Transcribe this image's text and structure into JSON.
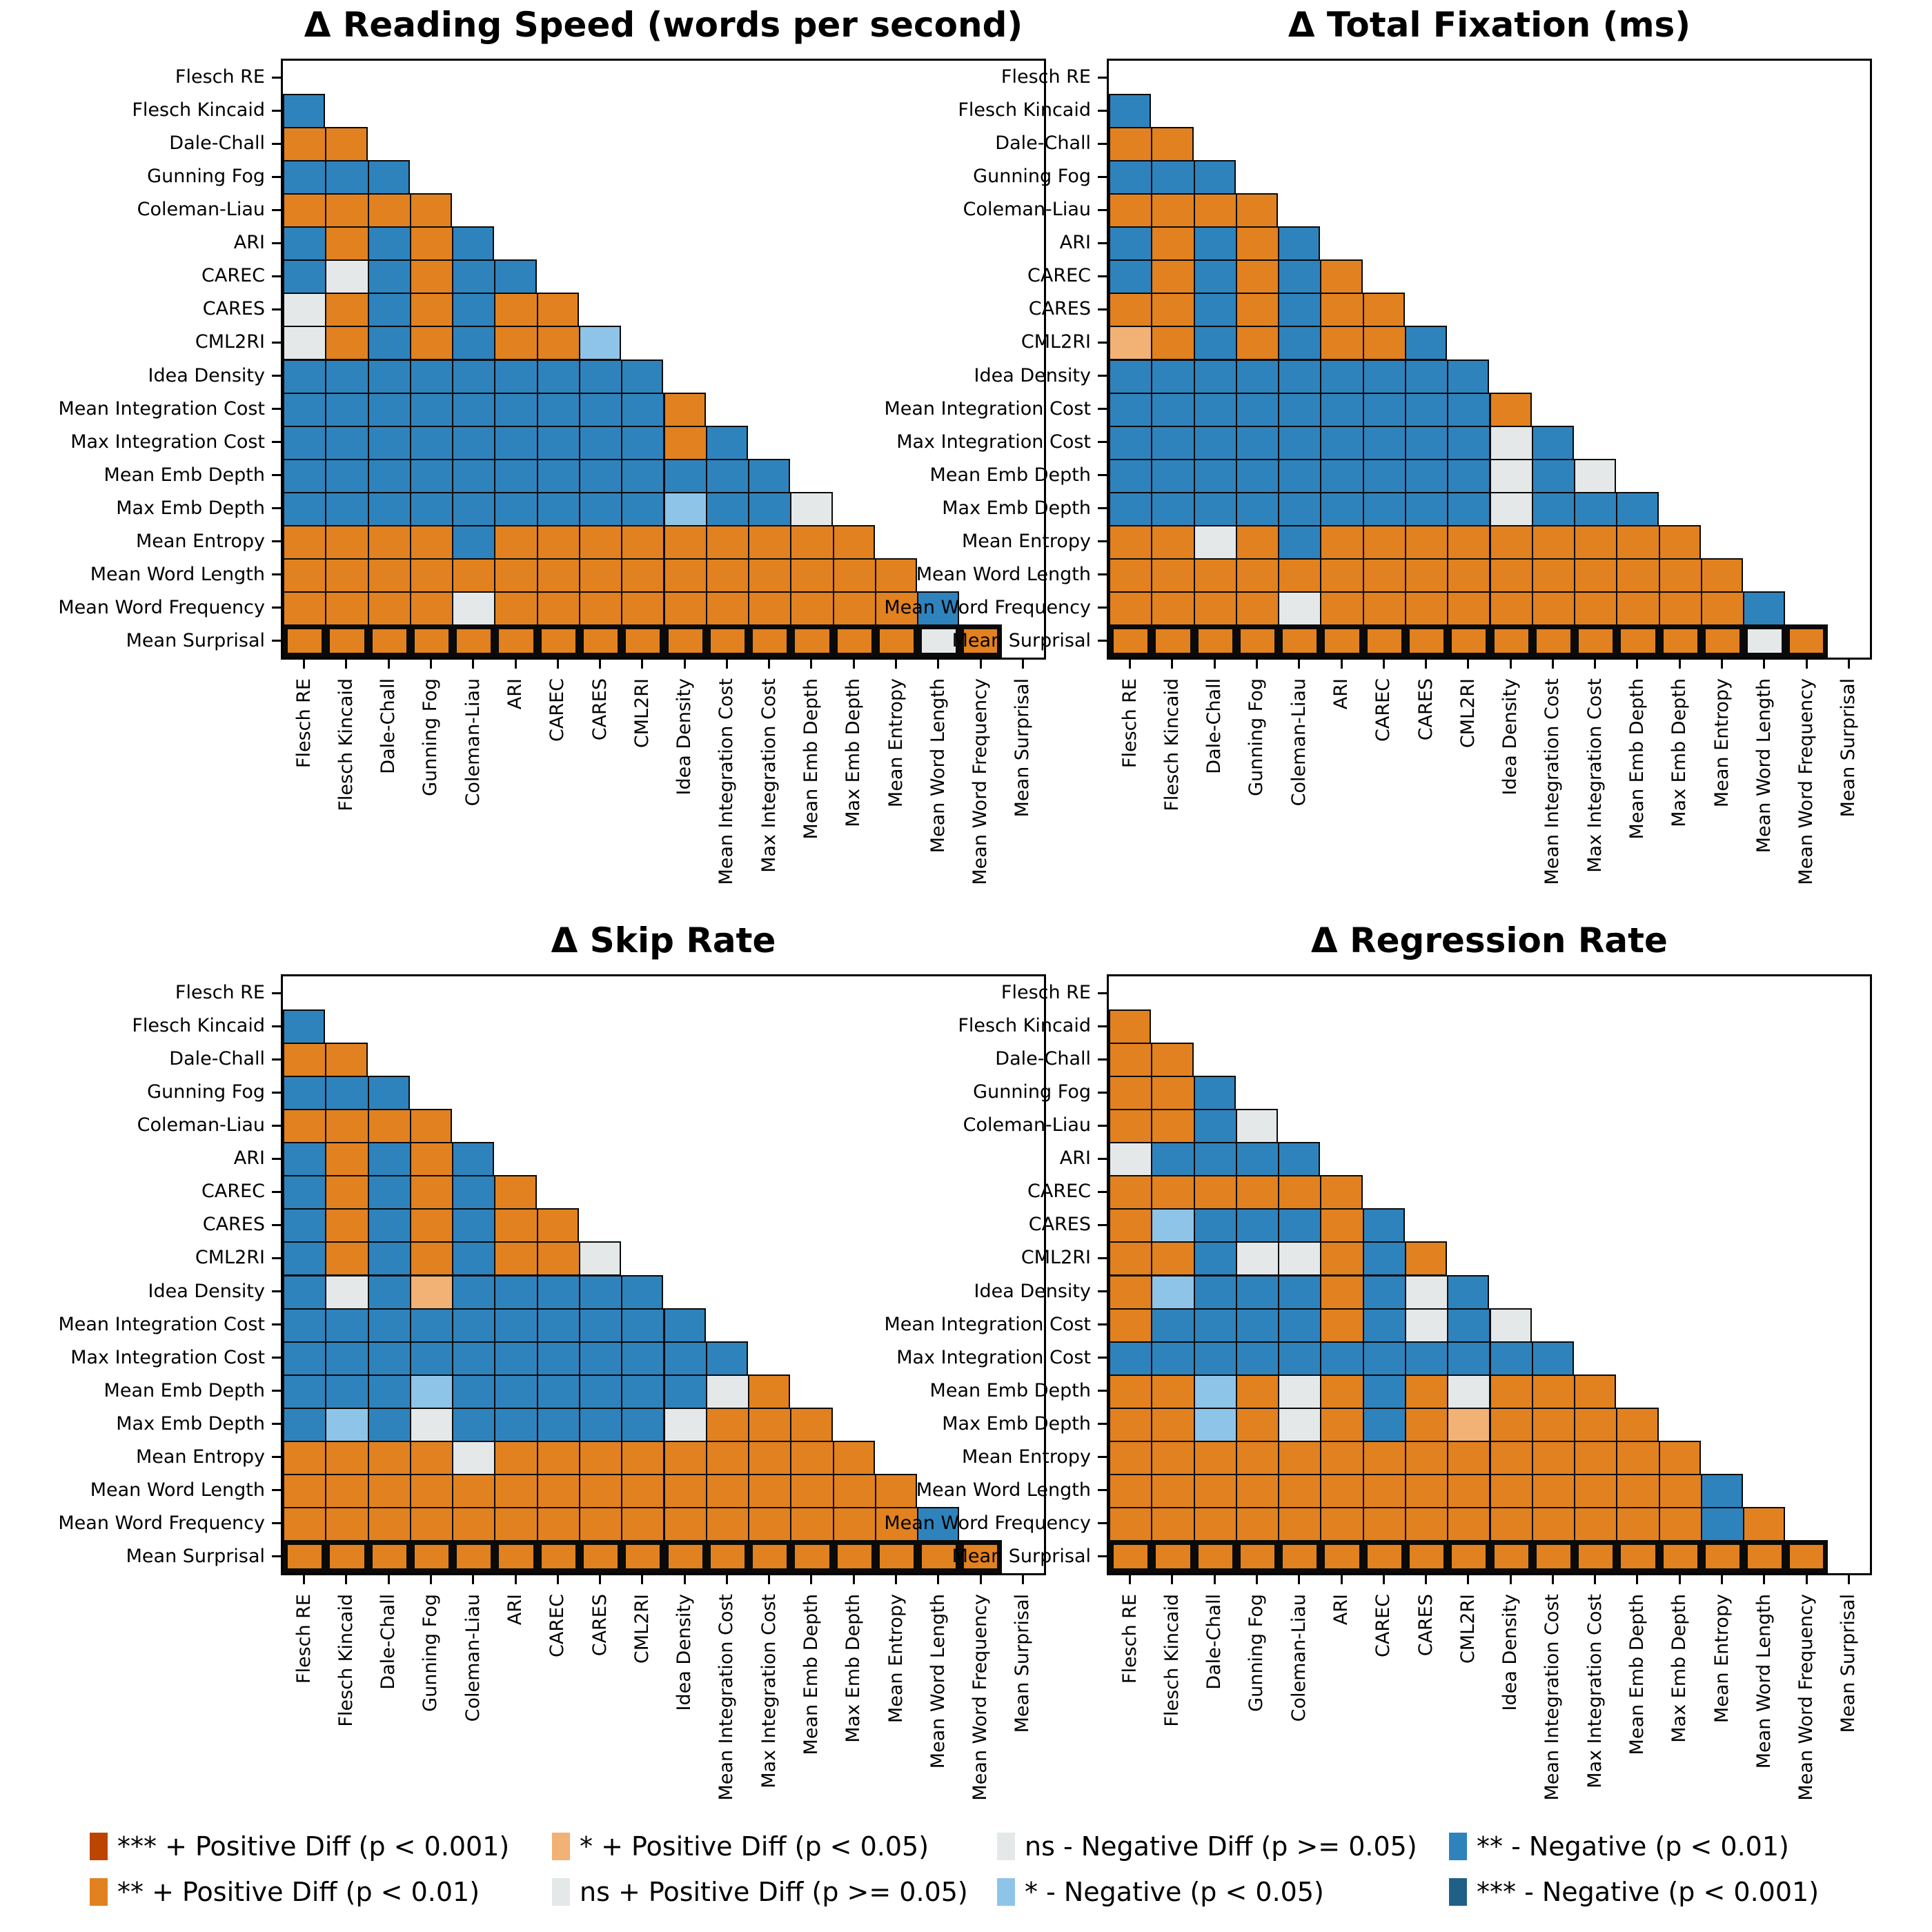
{
  "chart_data": {
    "type": "heatmap",
    "description": "Pairwise significance matrices (lower triangle) of differences between text-complexity metrics across four eye-tracking measures",
    "categories": [
      "Flesch RE",
      "Flesch Kincaid",
      "Dale-Chall",
      "Gunning Fog",
      "Coleman-Liau",
      "ARI",
      "CAREC",
      "CARES",
      "CML2RI",
      "Idea Density",
      "Mean Integration Cost",
      "Max Integration Cost",
      "Mean Emb Depth",
      "Max Emb Depth",
      "Mean Entropy",
      "Mean Word Length",
      "Mean Word Frequency",
      "Mean Surprisal"
    ],
    "cell_code_legend": "Each string is one matrix row (rows 2..18, i.e. Flesch Kincaid..Mean Surprisal); char j = cell vs column j. O=** positive (p<0.01), o=* positive (p<0.05), R=*** positive (p<0.001), n=not significant, b=* negative (p<0.05), B=** negative (p<0.01), D=*** negative (p<0.001)",
    "color_map": {
      "R": "#bb4501",
      "O": "#e2811f",
      "o": "#f2b175",
      "n": "#e4e8e9",
      "b": "#8ec4e8",
      "B": "#2e83bd",
      "D": "#216086"
    },
    "panels": [
      {
        "id": "reading-speed",
        "title": "Δ Reading Speed (words per second)",
        "rows": [
          "B",
          "OO",
          "BBB",
          "OOOO",
          "BOBOB",
          "BnBOBB",
          "nOBOBOO",
          "nOBOBOOb",
          "BBBBBBBBB",
          "BBBBBBBBBO",
          "BBBBBBBBBOB",
          "BBBBBBBBBBBB",
          "BBBBBBBBBbBBn",
          "OOOOBOOOOOOOOO",
          "OOOOOOOOOOOOOOO",
          "OOOOnOOOOOOOOOOB",
          "OOOOOOOOOOOOOOOnO"
        ]
      },
      {
        "id": "total-fixation",
        "title": "Δ Total Fixation (ms)",
        "rows": [
          "B",
          "OO",
          "BBB",
          "OOOO",
          "BOBOB",
          "BOBOBO",
          "OOBOBOO",
          "oOBOBOOB",
          "BBBBBBBBB",
          "BBBBBBBBBO",
          "BBBBBBBBBnB",
          "BBBBBBBBBnBn",
          "BBBBBBBBBnBBB",
          "OOnOBOOOOOOOOO",
          "OOOOOOOOOOOOOOO",
          "OOOOnOOOOOOOOOOB",
          "OOOOOOOOOOOOOOOnO"
        ]
      },
      {
        "id": "skip-rate",
        "title": "Δ Skip Rate",
        "rows": [
          "B",
          "OO",
          "BBB",
          "OOOO",
          "BOBOB",
          "BOBOBO",
          "BOBOBOO",
          "BOBOBOOn",
          "BnBoBBBBB",
          "BBBBBBBBBB",
          "BBBBBBBBBBB",
          "BBBbBBBBBBnO",
          "BbBnBBBBBnOOO",
          "OOOOnOOOOOOOOO",
          "OOOOOOOOOOOOOOO",
          "OOOOOOOOOOOOOOOB",
          "OOOOOOOOOOOOOOOOO"
        ]
      },
      {
        "id": "regression-rate",
        "title": "Δ Regression Rate",
        "rows": [
          "O",
          "OO",
          "OOB",
          "OOBn",
          "nBBBB",
          "OOOOOO",
          "ObBBBOB",
          "OOBnnOBO",
          "ObBBBOBnB",
          "OBBBBOBnBn",
          "BBBBBBBBBBB",
          "OObOnOBOnOOO",
          "OObOnOBOoOOOO",
          "OOOOOOOOOOOOOO",
          "OOOOOOOOOOOOOOB",
          "OOOOOOOOOOOOOOBO",
          "OOOOOOOOOOOOOOOOO"
        ]
      }
    ],
    "legend": {
      "position": "bottom",
      "columns": [
        [
          {
            "color": "#bb4501",
            "label": "*** + Positive Diff (p < 0.001)"
          },
          {
            "color": "#e2811f",
            "label": "** + Positive Diff (p < 0.01)"
          }
        ],
        [
          {
            "color": "#f2b175",
            "label": "* + Positive Diff (p < 0.05)"
          },
          {
            "color": "#e4e8e9",
            "label": "ns + Positive Diff (p >= 0.05)"
          }
        ],
        [
          {
            "color": "#e4e8e9",
            "label": "ns - Negative Diff (p >= 0.05)"
          },
          {
            "color": "#8ec4e8",
            "label": "* - Negative (p < 0.05)"
          }
        ],
        [
          {
            "color": "#2e83bd",
            "label": "** - Negative (p < 0.01)"
          },
          {
            "color": "#216086",
            "label": "*** - Negative (p < 0.001)"
          }
        ]
      ]
    },
    "notes": "Bottom row (Mean Surprisal) of every panel is drawn with a thick black outline"
  }
}
